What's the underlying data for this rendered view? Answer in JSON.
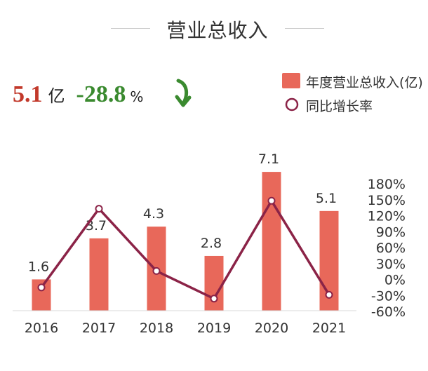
{
  "header": {
    "title": "营业总收入",
    "kpi_value": "5.1",
    "kpi_unit": "亿",
    "kpi_change": "-28.8",
    "kpi_pct": "%"
  },
  "colors": {
    "bar": "#e8685a",
    "line": "#8b2347",
    "kpi_value": "#c2392b",
    "kpi_change": "#3a8a2f"
  },
  "chart_data": {
    "type": "bar",
    "title": "营业总收入",
    "categories": [
      "2016",
      "2017",
      "2018",
      "2019",
      "2020",
      "2021"
    ],
    "series": [
      {
        "name": "年度营业总收入(亿)",
        "type": "bar",
        "axis": "left",
        "values": [
          1.6,
          3.7,
          4.3,
          2.8,
          7.1,
          5.1
        ],
        "labels": [
          "1.6",
          "3.7",
          "4.3",
          "2.8",
          "7.1",
          "5.1"
        ]
      },
      {
        "name": "同比增长率",
        "type": "line",
        "axis": "right",
        "values": [
          -15,
          133,
          16,
          -36,
          148,
          -28.8
        ]
      }
    ],
    "left_ylim": [
      0,
      8.0
    ],
    "right_axis": {
      "ylim": [
        -60,
        180
      ],
      "ticks": [
        180,
        150,
        120,
        90,
        60,
        30,
        0,
        -30,
        -60
      ],
      "tick_labels": [
        "180%",
        "150%",
        "120%",
        "90%",
        "60%",
        "30%",
        "0%",
        "-30%",
        "-60%"
      ]
    },
    "legend": [
      "年度营业总收入(亿)",
      "同比增长率"
    ],
    "legend_position": "top-right",
    "grid": false
  }
}
